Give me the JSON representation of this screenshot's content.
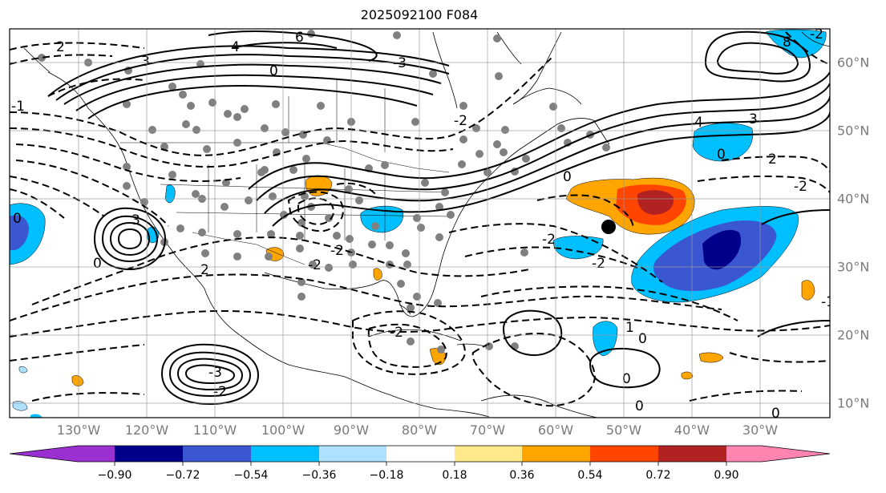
{
  "title": "2025092100 F084",
  "lon_labels": [
    "130°W",
    "120°W",
    "110°W",
    "100°W",
    "90°W",
    "80°W",
    "70°W",
    "60°W",
    "50°W",
    "40°W",
    "30°W"
  ],
  "lat_labels": [
    "60°N",
    "50°N",
    "40°N",
    "30°N",
    "20°N",
    "10°N"
  ],
  "contour_labels": [
    "6",
    "4",
    "3",
    "2",
    "0",
    "-2",
    "-3",
    "4",
    "3",
    "0",
    "2",
    "-2",
    "-2",
    "3",
    "-2",
    "0",
    "-2",
    "0",
    "-2",
    "-1",
    "-2",
    "1",
    "0",
    "0",
    "0",
    "8",
    "-2",
    "-2",
    "2",
    "-3",
    "0",
    "-1",
    "0"
  ],
  "colorbar": {
    "ticks": [
      "−0.90",
      "−0.72",
      "−0.54",
      "−0.36",
      "−0.18",
      "0.18",
      "0.36",
      "0.54",
      "0.72",
      "0.90"
    ],
    "colors": [
      "#9b30d0",
      "#00008b",
      "#3a56d0",
      "#00bfff",
      "#aee0ff",
      "#ffffff",
      "#ffe98a",
      "#ffa500",
      "#ff4500",
      "#b22222",
      "#ff85b0"
    ]
  },
  "marker": {
    "shape": "black-dot",
    "lon": "52°W",
    "lat": "36°N"
  }
}
